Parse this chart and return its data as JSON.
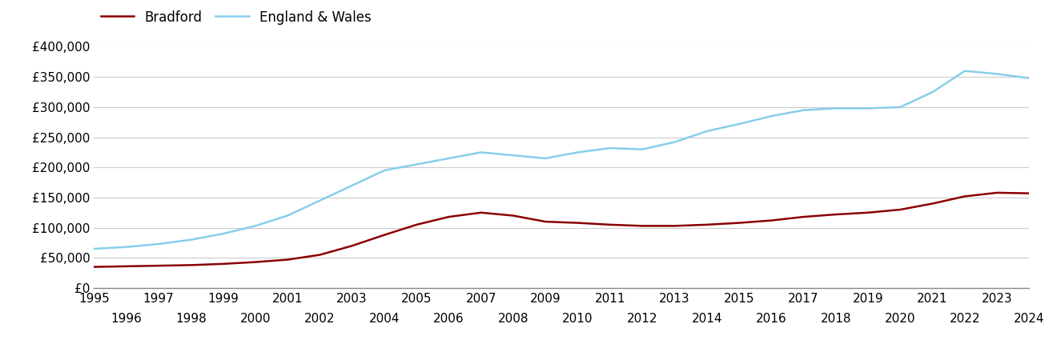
{
  "bradford": {
    "years": [
      1995,
      1996,
      1997,
      1998,
      1999,
      2000,
      2001,
      2002,
      2003,
      2004,
      2005,
      2006,
      2007,
      2008,
      2009,
      2010,
      2011,
      2012,
      2013,
      2014,
      2015,
      2016,
      2017,
      2018,
      2019,
      2020,
      2021,
      2022,
      2023,
      2024
    ],
    "values": [
      35000,
      36000,
      37000,
      38000,
      40000,
      43000,
      47000,
      55000,
      70000,
      88000,
      105000,
      118000,
      125000,
      120000,
      110000,
      108000,
      105000,
      103000,
      103000,
      105000,
      108000,
      112000,
      118000,
      122000,
      125000,
      130000,
      140000,
      152000,
      158000,
      157000
    ]
  },
  "england_wales": {
    "years": [
      1995,
      1996,
      1997,
      1998,
      1999,
      2000,
      2001,
      2002,
      2003,
      2004,
      2005,
      2006,
      2007,
      2008,
      2009,
      2010,
      2011,
      2012,
      2013,
      2014,
      2015,
      2016,
      2017,
      2018,
      2019,
      2020,
      2021,
      2022,
      2023,
      2024
    ],
    "values": [
      65000,
      68000,
      73000,
      80000,
      90000,
      103000,
      120000,
      145000,
      170000,
      195000,
      205000,
      215000,
      225000,
      220000,
      215000,
      225000,
      232000,
      230000,
      242000,
      260000,
      272000,
      285000,
      295000,
      298000,
      298000,
      300000,
      325000,
      360000,
      355000,
      348000
    ]
  },
  "bradford_color": "#8b0000",
  "england_wales_color": "#87ceeb",
  "background_color": "#ffffff",
  "legend_labels": [
    "Bradford",
    "England & Wales"
  ],
  "ylim": [
    0,
    400000
  ],
  "yticks": [
    0,
    50000,
    100000,
    150000,
    200000,
    250000,
    300000,
    350000,
    400000
  ],
  "grid_color": "#cccccc",
  "line_width": 1.8,
  "tick_label_fontsize": 11,
  "legend_fontsize": 12,
  "x_major_ticks": [
    1995,
    1997,
    1999,
    2001,
    2003,
    2005,
    2007,
    2009,
    2011,
    2013,
    2015,
    2017,
    2019,
    2021,
    2023
  ],
  "x_minor_ticks": [
    1996,
    1998,
    2000,
    2002,
    2004,
    2006,
    2008,
    2010,
    2012,
    2014,
    2016,
    2018,
    2020,
    2022,
    2024
  ]
}
